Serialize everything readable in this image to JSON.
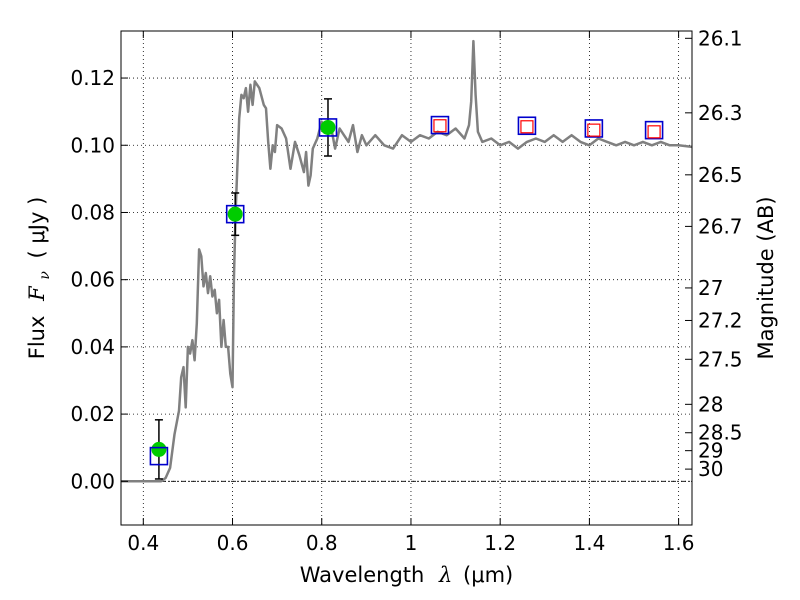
{
  "chart_data": {
    "type": "scatter",
    "xlabel": "Wavelength",
    "xlabel_symbol": "λ",
    "xlabel_unit": "(μm)",
    "ylabel": "Flux",
    "ylabel_symbol": "F",
    "ylabel_symbol_sub": "ν",
    "ylabel_unit": "( μJy )",
    "y2label": "Magnitude (AB)",
    "xlim": [
      0.35,
      1.63
    ],
    "ylim": [
      -0.013,
      0.134
    ],
    "grid": true,
    "x_ticks": [
      0.4,
      0.6,
      0.8,
      1.0,
      1.2,
      1.4,
      1.6
    ],
    "x_tick_labels": [
      "0.4",
      "0.6",
      "0.8",
      "1",
      "1.2",
      "1.4",
      "1.6"
    ],
    "y_ticks": [
      0.0,
      0.02,
      0.04,
      0.06,
      0.08,
      0.1,
      0.12
    ],
    "y_tick_labels": [
      "0.00",
      "0.02",
      "0.04",
      "0.06",
      "0.08",
      "0.10",
      "0.12"
    ],
    "mag_ticks": [
      26.1,
      26.3,
      26.5,
      26.7,
      27.0,
      27.2,
      27.5,
      28.0,
      28.5,
      29.0,
      30.0
    ],
    "mag_tick_labels": [
      "26.1",
      "26.3",
      "26.5",
      "26.7",
      "27",
      "27.2",
      "27.5",
      "28",
      "28.5",
      "29",
      "30"
    ],
    "colors": {
      "model": "#808080",
      "observed": "#00cc00",
      "errorbar": "#000000",
      "model_box": "#0000cc",
      "upper_box": "#ff0000",
      "grid": "#000000"
    },
    "series": [
      {
        "name": "model_spectrum",
        "style": "line",
        "points": [
          [
            0.35,
            0.0
          ],
          [
            0.44,
            0.0
          ],
          [
            0.45,
            0.001
          ],
          [
            0.46,
            0.004
          ],
          [
            0.47,
            0.014
          ],
          [
            0.48,
            0.021
          ],
          [
            0.485,
            0.031
          ],
          [
            0.49,
            0.034
          ],
          [
            0.495,
            0.022
          ],
          [
            0.5,
            0.04
          ],
          [
            0.505,
            0.038
          ],
          [
            0.51,
            0.042
          ],
          [
            0.515,
            0.036
          ],
          [
            0.52,
            0.047
          ],
          [
            0.525,
            0.069
          ],
          [
            0.53,
            0.067
          ],
          [
            0.535,
            0.058
          ],
          [
            0.54,
            0.062
          ],
          [
            0.545,
            0.056
          ],
          [
            0.55,
            0.061
          ],
          [
            0.555,
            0.055
          ],
          [
            0.56,
            0.057
          ],
          [
            0.565,
            0.05
          ],
          [
            0.57,
            0.054
          ],
          [
            0.575,
            0.04
          ],
          [
            0.58,
            0.048
          ],
          [
            0.585,
            0.04
          ],
          [
            0.59,
            0.04
          ],
          [
            0.595,
            0.032
          ],
          [
            0.6,
            0.028
          ],
          [
            0.603,
            0.06
          ],
          [
            0.607,
            0.08
          ],
          [
            0.615,
            0.108
          ],
          [
            0.62,
            0.115
          ],
          [
            0.625,
            0.114
          ],
          [
            0.63,
            0.117
          ],
          [
            0.635,
            0.11
          ],
          [
            0.64,
            0.118
          ],
          [
            0.645,
            0.112
          ],
          [
            0.65,
            0.119
          ],
          [
            0.66,
            0.117
          ],
          [
            0.67,
            0.112
          ],
          [
            0.675,
            0.111
          ],
          [
            0.68,
            0.101
          ],
          [
            0.685,
            0.093
          ],
          [
            0.69,
            0.1
          ],
          [
            0.695,
            0.098
          ],
          [
            0.7,
            0.106
          ],
          [
            0.71,
            0.105
          ],
          [
            0.72,
            0.102
          ],
          [
            0.73,
            0.093
          ],
          [
            0.74,
            0.101
          ],
          [
            0.75,
            0.097
          ],
          [
            0.76,
            0.092
          ],
          [
            0.765,
            0.098
          ],
          [
            0.77,
            0.088
          ],
          [
            0.775,
            0.091
          ],
          [
            0.78,
            0.099
          ],
          [
            0.79,
            0.102
          ],
          [
            0.8,
            0.107
          ],
          [
            0.81,
            0.104
          ],
          [
            0.82,
            0.106
          ],
          [
            0.83,
            0.099
          ],
          [
            0.84,
            0.105
          ],
          [
            0.85,
            0.103
          ],
          [
            0.86,
            0.101
          ],
          [
            0.87,
            0.106
          ],
          [
            0.88,
            0.098
          ],
          [
            0.89,
            0.103
          ],
          [
            0.9,
            0.1
          ],
          [
            0.92,
            0.103
          ],
          [
            0.94,
            0.1
          ],
          [
            0.96,
            0.099
          ],
          [
            0.98,
            0.103
          ],
          [
            1.0,
            0.101
          ],
          [
            1.02,
            0.103
          ],
          [
            1.04,
            0.102
          ],
          [
            1.06,
            0.104
          ],
          [
            1.08,
            0.103
          ],
          [
            1.1,
            0.105
          ],
          [
            1.12,
            0.102
          ],
          [
            1.13,
            0.106
          ],
          [
            1.135,
            0.113
          ],
          [
            1.14,
            0.131
          ],
          [
            1.145,
            0.115
          ],
          [
            1.15,
            0.104
          ],
          [
            1.16,
            0.101
          ],
          [
            1.18,
            0.102
          ],
          [
            1.2,
            0.1
          ],
          [
            1.22,
            0.101
          ],
          [
            1.24,
            0.099
          ],
          [
            1.26,
            0.101
          ],
          [
            1.28,
            0.102
          ],
          [
            1.3,
            0.101
          ],
          [
            1.32,
            0.103
          ],
          [
            1.34,
            0.101
          ],
          [
            1.36,
            0.103
          ],
          [
            1.38,
            0.101
          ],
          [
            1.4,
            0.1
          ],
          [
            1.42,
            0.102
          ],
          [
            1.44,
            0.101
          ],
          [
            1.46,
            0.1
          ],
          [
            1.48,
            0.101
          ],
          [
            1.5,
            0.1
          ],
          [
            1.52,
            0.101
          ],
          [
            1.54,
            0.1
          ],
          [
            1.56,
            0.101
          ],
          [
            1.58,
            0.1
          ],
          [
            1.6,
            0.1
          ],
          [
            1.63,
            0.0995
          ]
        ]
      },
      {
        "name": "observed_photometry",
        "style": "markers",
        "points": [
          {
            "x": 0.435,
            "y": 0.0095,
            "yerr": 0.0088
          },
          {
            "x": 0.606,
            "y": 0.0795,
            "yerr": 0.0063
          },
          {
            "x": 0.814,
            "y": 0.1053,
            "yerr": 0.0085
          }
        ]
      },
      {
        "name": "model_photometry",
        "style": "open_squares",
        "points": [
          [
            0.435,
            0.0075
          ],
          [
            0.606,
            0.0795
          ],
          [
            0.814,
            0.1053
          ],
          [
            1.065,
            0.106
          ],
          [
            1.26,
            0.1058
          ],
          [
            1.41,
            0.105
          ],
          [
            1.545,
            0.1045
          ]
        ]
      },
      {
        "name": "upper_limits",
        "style": "open_squares",
        "points": [
          [
            1.065,
            0.1058
          ],
          [
            1.26,
            0.1055
          ],
          [
            1.41,
            0.1045
          ],
          [
            1.545,
            0.104
          ]
        ]
      }
    ]
  }
}
